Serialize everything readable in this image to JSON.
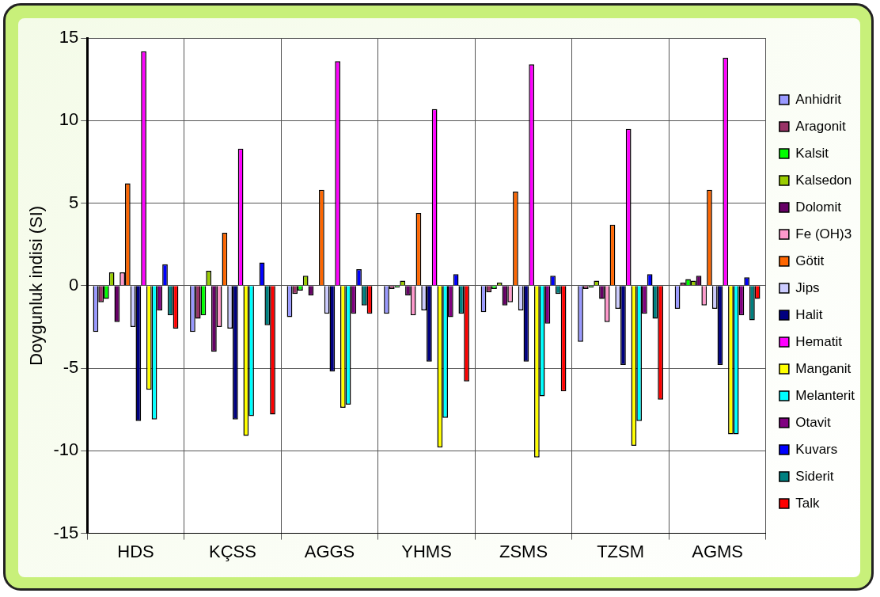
{
  "chart_data": {
    "type": "bar",
    "ylabel": "Doygunluk indisi (SI)",
    "categories": [
      "HDS",
      "KÇSS",
      "AGGS",
      "YHMS",
      "ZSMS",
      "TZSM",
      "AGMS"
    ],
    "ylim": [
      -15,
      15
    ],
    "yticks": [
      -15,
      -10,
      -5,
      0,
      5,
      10,
      15
    ],
    "grid": true,
    "legend": "right",
    "series": [
      {
        "name": "Anhidrit",
        "color": "#9999ff",
        "values": [
          -2.8,
          -2.8,
          -1.9,
          -1.7,
          -1.6,
          -3.4,
          -1.4
        ]
      },
      {
        "name": "Aragonit",
        "color": "#993366",
        "values": [
          -1.0,
          -2.0,
          -0.5,
          -0.2,
          -0.4,
          -0.2,
          0.2
        ]
      },
      {
        "name": "Kalsit",
        "color": "#00ff00",
        "values": [
          -0.8,
          -1.8,
          -0.3,
          -0.1,
          -0.2,
          -0.1,
          0.4
        ]
      },
      {
        "name": "Kalsedon",
        "color": "#99cc00",
        "values": [
          0.8,
          0.9,
          0.6,
          0.3,
          0.2,
          0.3,
          0.3
        ]
      },
      {
        "name": "Dolomit",
        "color": "#660066",
        "values": [
          -2.2,
          -4.0,
          -0.6,
          -0.6,
          -1.2,
          -0.8,
          0.6
        ]
      },
      {
        "name": "Fe (OH)3",
        "color": "#ff99cc",
        "values": [
          0.8,
          -2.5,
          null,
          -1.8,
          -1.0,
          -2.2,
          -1.2
        ]
      },
      {
        "name": "Götit",
        "color": "#ff6600",
        "values": [
          6.2,
          3.2,
          5.8,
          4.4,
          5.7,
          3.7,
          5.8
        ]
      },
      {
        "name": "Jips",
        "color": "#ccccff",
        "values": [
          -2.5,
          -2.6,
          -1.7,
          -1.5,
          -1.5,
          -1.4,
          -1.4
        ]
      },
      {
        "name": "Halit",
        "color": "#000080",
        "values": [
          -8.2,
          -8.1,
          -5.2,
          -4.6,
          -4.6,
          -4.8,
          -4.8
        ]
      },
      {
        "name": "Hematit",
        "color": "#ff00ff",
        "values": [
          14.2,
          8.3,
          13.6,
          10.7,
          13.4,
          9.5,
          13.8
        ]
      },
      {
        "name": "Manganit",
        "color": "#ffff00",
        "values": [
          -6.3,
          -9.1,
          -7.4,
          -9.8,
          -10.4,
          -9.7,
          -9.0
        ]
      },
      {
        "name": "Melanterit",
        "color": "#00ffff",
        "values": [
          -8.1,
          -7.9,
          -7.2,
          -8.0,
          -6.7,
          -8.2,
          -9.0
        ]
      },
      {
        "name": "Otavit",
        "color": "#800080",
        "values": [
          -1.5,
          0,
          -1.7,
          -1.9,
          -2.3,
          -1.7,
          -1.8
        ]
      },
      {
        "name": "Kuvars",
        "color": "#0000ff",
        "values": [
          1.3,
          1.4,
          1.0,
          0.7,
          0.6,
          0.7,
          0.5
        ]
      },
      {
        "name": "Siderit",
        "color": "#008080",
        "values": [
          -1.8,
          -2.4,
          -1.2,
          -1.7,
          -0.5,
          -2.0,
          -2.1
        ]
      },
      {
        "name": "Talk",
        "color": "#ff0000",
        "values": [
          -2.6,
          -7.8,
          -1.7,
          -5.8,
          -6.4,
          -6.9,
          -0.8
        ]
      }
    ]
  }
}
